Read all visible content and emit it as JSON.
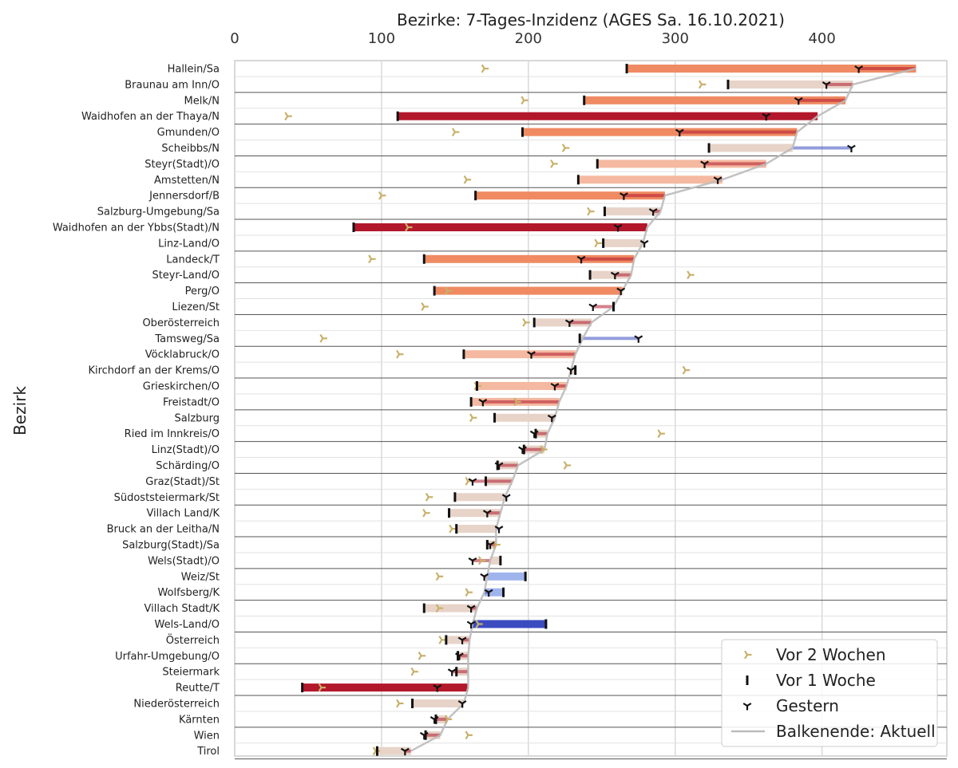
{
  "chart_data": {
    "type": "bar",
    "title": "Bezirke: 7-Tages-Inzidenz (AGES Sa. 16.10.2021)",
    "xlabel": "",
    "ylabel": "Bezirk",
    "xlim": [
      0,
      485
    ],
    "xticks": [
      0,
      100,
      200,
      300,
      400
    ],
    "grid": true,
    "legend_position": "lower-right",
    "legend": [
      "Vor 2 Wochen",
      "Vor 1 Woche",
      "Gestern",
      "Balkenende: Aktuell"
    ],
    "colors": {
      "marker_two_weeks": "#c9b06a",
      "marker_one_week": "#111111",
      "marker_yesterday": "#111111",
      "current_line": "#bbbbbb",
      "increase_strong": "#b2182b",
      "increase_mid": "#ef8a62",
      "increase_light": "#f4b9a0",
      "neutral": "#e7d3c8",
      "decrease_light": "#9fb4ec",
      "decrease_mid": "#5a80e0",
      "decrease_strong": "#3b4cc0",
      "grid": "#d9d9d9",
      "frame": "#cccccc"
    },
    "categories": [
      "Hallein/Sa",
      "Braunau am Inn/O",
      "Melk/N",
      "Waidhofen an der Thaya/N",
      "Gmunden/O",
      "Scheibbs/N",
      "Steyr(Stadt)/O",
      "Amstetten/N",
      "Jennersdorf/B",
      "Salzburg-Umgebung/Sa",
      "Waidhofen an der Ybbs(Stadt)/N",
      "Linz-Land/O",
      "Landeck/T",
      "Steyr-Land/O",
      "Perg/O",
      "Liezen/St",
      "Oberösterreich",
      "Tamsweg/Sa",
      "Vöcklabruck/O",
      "Kirchdorf an der Krems/O",
      "Grieskirchen/O",
      "Freistadt/O",
      "Salzburg",
      "Ried im Innkreis/O",
      "Linz(Stadt)/O",
      "Schärding/O",
      "Graz(Stadt)/St",
      "Südoststeiermark/St",
      "Villach Land/K",
      "Bruck an der Leitha/N",
      "Salzburg(Stadt)/Sa",
      "Wels(Stadt)/O",
      "Weiz/St",
      "Wolfsberg/K",
      "Villach Stadt/K",
      "Wels-Land/O",
      "Österreich",
      "Urfahr-Umgebung/O",
      "Steiermark",
      "Reutte/T",
      "Niederösterreich",
      "Kärnten",
      "Wien",
      "Tirol"
    ],
    "current": [
      464,
      421,
      416,
      397,
      383,
      380,
      362,
      332,
      293,
      290,
      281,
      278,
      272,
      270,
      264,
      258,
      243,
      237,
      232,
      229,
      226,
      221,
      218,
      213,
      211,
      193,
      189,
      184,
      181,
      178,
      178,
      174,
      172,
      170,
      165,
      162,
      160,
      159,
      159,
      159,
      156,
      145,
      140,
      120
    ],
    "one_week": [
      267,
      336,
      238,
      111,
      196,
      323,
      247,
      234,
      164,
      252,
      81,
      251,
      129,
      242,
      136,
      258,
      204,
      235,
      156,
      232,
      165,
      161,
      177,
      205,
      197,
      179,
      171,
      150,
      146,
      151,
      172,
      181,
      198,
      183,
      129,
      212,
      144,
      152,
      151,
      46,
      121,
      137,
      130,
      97
    ],
    "yesterday": [
      425,
      403,
      384,
      362,
      303,
      420,
      320,
      329,
      265,
      285,
      261,
      279,
      236,
      259,
      263,
      244,
      228,
      275,
      202,
      229,
      218,
      169,
      216,
      204,
      196,
      180,
      162,
      185,
      172,
      180,
      174,
      162,
      170,
      173,
      161,
      161,
      155,
      153,
      148,
      138,
      155,
      136,
      129,
      116
    ],
    "two_weeks": [
      170,
      318,
      197,
      36,
      150,
      225,
      217,
      158,
      100,
      242,
      118,
      247,
      93,
      310,
      145,
      129,
      198,
      60,
      112,
      307,
      165,
      192,
      162,
      290,
      210,
      226,
      159,
      132,
      130,
      148,
      178,
      168,
      139,
      159,
      139,
      166,
      141,
      127,
      122,
      59,
      112,
      145,
      159,
      96
    ]
  }
}
